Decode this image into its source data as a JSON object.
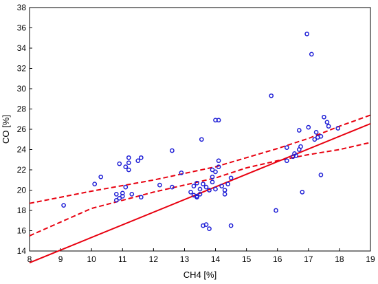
{
  "chart_data": {
    "type": "scatter",
    "xlabel": "CH4 [%]",
    "ylabel": "CO [%]",
    "xlim": [
      8,
      19
    ],
    "ylim": [
      14,
      38
    ],
    "xticks": [
      "8",
      "9",
      "10",
      "11",
      "12",
      "13",
      "14",
      "15",
      "16",
      "17",
      "18",
      "19"
    ],
    "yticks": [
      "14",
      "16",
      "18",
      "20",
      "22",
      "24",
      "26",
      "28",
      "30",
      "32",
      "34",
      "36",
      "38"
    ],
    "grid": false,
    "colors": {
      "points": "#1f1fd6",
      "fit": "#e8000f"
    },
    "points": [
      [
        9.1,
        18.5
      ],
      [
        10.1,
        20.6
      ],
      [
        10.3,
        21.3
      ],
      [
        10.8,
        19.0
      ],
      [
        10.8,
        19.6
      ],
      [
        10.9,
        19.2
      ],
      [
        10.9,
        22.6
      ],
      [
        11.0,
        19.7
      ],
      [
        11.0,
        19.4
      ],
      [
        11.1,
        20.3
      ],
      [
        11.1,
        22.3
      ],
      [
        11.2,
        22.0
      ],
      [
        11.2,
        22.7
      ],
      [
        11.2,
        23.2
      ],
      [
        11.3,
        19.6
      ],
      [
        11.5,
        22.9
      ],
      [
        11.6,
        23.2
      ],
      [
        11.6,
        19.3
      ],
      [
        12.2,
        20.5
      ],
      [
        12.6,
        20.3
      ],
      [
        12.6,
        23.9
      ],
      [
        12.9,
        21.7
      ],
      [
        13.2,
        19.8
      ],
      [
        13.3,
        20.4
      ],
      [
        13.3,
        19.5
      ],
      [
        13.4,
        19.3
      ],
      [
        13.4,
        19.4
      ],
      [
        13.4,
        20.7
      ],
      [
        13.5,
        19.6
      ],
      [
        13.5,
        20.1
      ],
      [
        13.55,
        25.0
      ],
      [
        13.6,
        16.5
      ],
      [
        13.6,
        20.6
      ],
      [
        13.7,
        16.6
      ],
      [
        13.7,
        20.3
      ],
      [
        13.8,
        20.0
      ],
      [
        13.8,
        16.2
      ],
      [
        13.9,
        20.8
      ],
      [
        13.9,
        21.3
      ],
      [
        13.9,
        22.0
      ],
      [
        14.0,
        20.1
      ],
      [
        14.0,
        21.8
      ],
      [
        14.0,
        26.9
      ],
      [
        14.1,
        22.3
      ],
      [
        14.1,
        26.9
      ],
      [
        14.1,
        22.9
      ],
      [
        14.2,
        20.4
      ],
      [
        14.3,
        20.0
      ],
      [
        14.3,
        19.6
      ],
      [
        14.4,
        20.6
      ],
      [
        14.5,
        16.5
      ],
      [
        14.5,
        21.2
      ],
      [
        15.8,
        29.3
      ],
      [
        15.95,
        18.0
      ],
      [
        16.3,
        24.2
      ],
      [
        16.3,
        22.9
      ],
      [
        16.5,
        23.3
      ],
      [
        16.55,
        23.6
      ],
      [
        16.6,
        23.4
      ],
      [
        16.7,
        25.9
      ],
      [
        16.7,
        24.0
      ],
      [
        16.75,
        24.3
      ],
      [
        16.8,
        19.8
      ],
      [
        16.95,
        35.4
      ],
      [
        17.0,
        26.2
      ],
      [
        17.1,
        33.4
      ],
      [
        17.2,
        25.0
      ],
      [
        17.25,
        25.7
      ],
      [
        17.3,
        25.2
      ],
      [
        17.4,
        25.3
      ],
      [
        17.4,
        21.5
      ],
      [
        17.5,
        27.2
      ],
      [
        17.6,
        26.7
      ],
      [
        17.65,
        26.3
      ],
      [
        17.95,
        26.1
      ]
    ],
    "fit": {
      "intercept": 2.87,
      "slope": 1.2464
    },
    "band": {
      "x": [
        8,
        10,
        12,
        14,
        15,
        16,
        17,
        18,
        19
      ],
      "lower": [
        15.5,
        18.2,
        19.8,
        21.2,
        22.2,
        22.9,
        23.5,
        24.0,
        24.7
      ],
      "upper": [
        18.7,
        19.9,
        21.0,
        22.3,
        23.2,
        24.1,
        25.1,
        26.3,
        27.4
      ]
    }
  }
}
